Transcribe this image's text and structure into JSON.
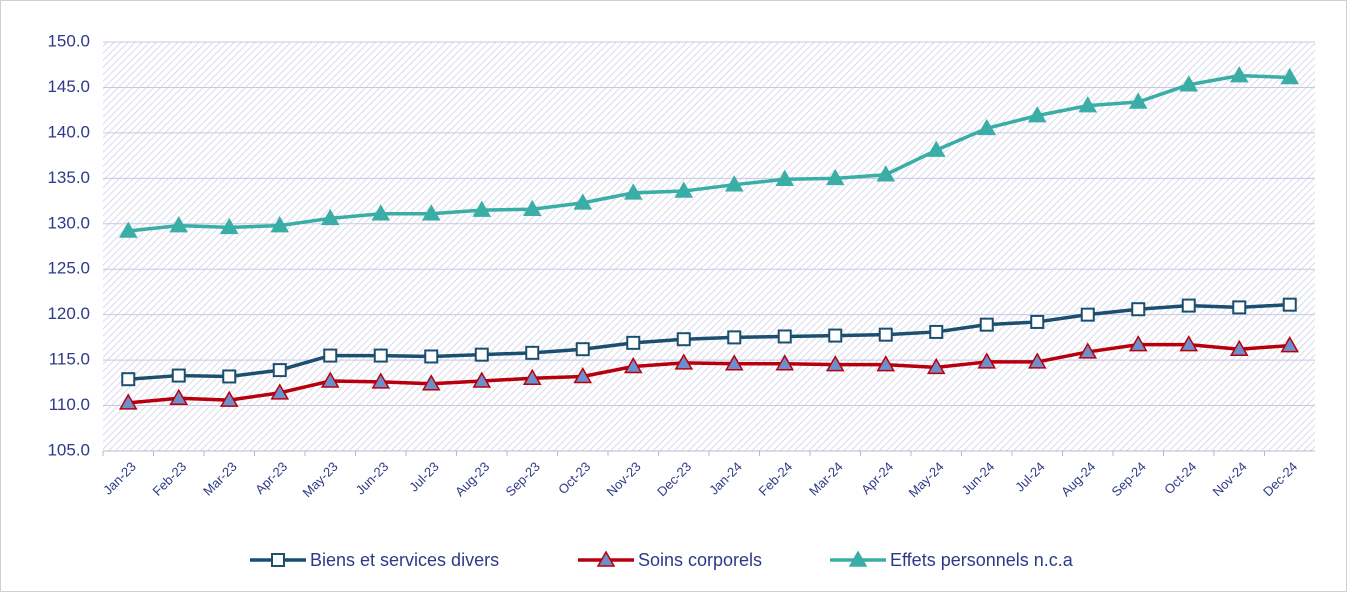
{
  "chart_data": {
    "type": "line",
    "categories": [
      "Jan-23",
      "Feb-23",
      "Mar-23",
      "Apr-23",
      "May-23",
      "Jun-23",
      "Jul-23",
      "Aug-23",
      "Sep-23",
      "Oct-23",
      "Nov-23",
      "Dec-23",
      "Jan-24",
      "Feb-24",
      "Mar-24",
      "Apr-24",
      "May-24",
      "Jun-24",
      "Jul-24",
      "Aug-24",
      "Sep-24",
      "Oct-24",
      "Nov-24",
      "Dec-24"
    ],
    "series": [
      {
        "name": "Biens et services divers",
        "color": "#1c4f6f",
        "marker": "square",
        "marker_color": "#ffffff",
        "values": [
          112.9,
          113.3,
          113.2,
          113.9,
          115.5,
          115.5,
          115.4,
          115.6,
          115.8,
          116.2,
          116.9,
          117.3,
          117.5,
          117.6,
          117.7,
          117.8,
          118.1,
          118.9,
          119.2,
          120.0,
          120.6,
          121.0,
          120.8,
          121.1
        ]
      },
      {
        "name": "Soins corporels",
        "color": "#b8000c",
        "marker": "triangle",
        "marker_color": "#6d8fcc",
        "values": [
          110.3,
          110.8,
          110.6,
          111.4,
          112.7,
          112.6,
          112.4,
          112.7,
          113.0,
          113.2,
          114.3,
          114.7,
          114.6,
          114.6,
          114.5,
          114.5,
          114.2,
          114.8,
          114.8,
          115.9,
          116.7,
          116.7,
          116.2,
          116.6
        ]
      },
      {
        "name": "Effets personnels n.c.a",
        "color": "#3aaea6",
        "marker": "triangle",
        "marker_color": "#3aaea6",
        "values": [
          129.2,
          129.8,
          129.6,
          129.8,
          130.6,
          131.1,
          131.1,
          131.5,
          131.6,
          132.3,
          133.4,
          133.6,
          134.3,
          134.9,
          135.0,
          135.4,
          138.1,
          140.5,
          141.9,
          143.0,
          143.4,
          145.3,
          146.3,
          146.1
        ]
      }
    ],
    "ylim": [
      105,
      150
    ],
    "yticks": [
      {
        "value": 105,
        "label": "105.0"
      },
      {
        "value": 110,
        "label": "110.0"
      },
      {
        "value": 115,
        "label": "115.0"
      },
      {
        "value": 120,
        "label": "120.0"
      },
      {
        "value": 125,
        "label": "125.0"
      },
      {
        "value": 130,
        "label": "130.0"
      },
      {
        "value": 135,
        "label": "135.0"
      },
      {
        "value": 140,
        "label": "140.0"
      },
      {
        "value": 145,
        "label": "145.0"
      },
      {
        "value": 150,
        "label": "150.0"
      }
    ],
    "grid": true,
    "legend": "bottom"
  }
}
